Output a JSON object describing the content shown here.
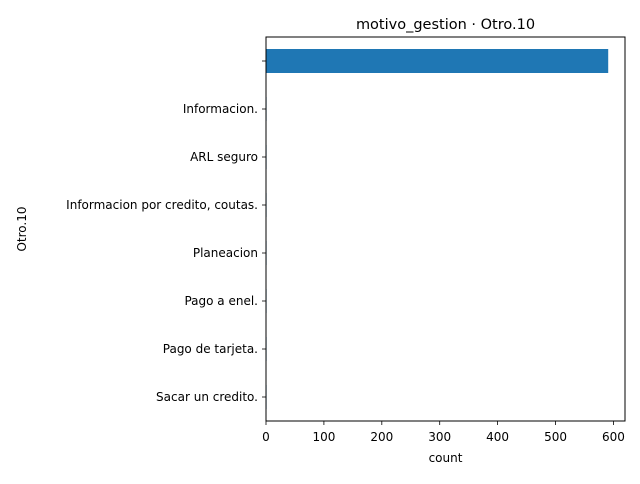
{
  "chart_data": {
    "type": "bar",
    "orientation": "horizontal",
    "title": "motivo_gestion · Otro.10",
    "xlabel": "count",
    "ylabel": "Otro.10",
    "categories": [
      "",
      "Informacion.",
      "ARL seguro",
      "Informacion por credito, coutas.",
      "Planeacion",
      "Pago a enel.",
      "Pago de tarjeta.",
      "Sacar un credito."
    ],
    "values": [
      591,
      1,
      1,
      1,
      1,
      1,
      1,
      1
    ],
    "xlim": [
      0,
      620
    ],
    "xticks": [
      0,
      100,
      200,
      300,
      400,
      500,
      600
    ],
    "grid": false,
    "bar_color": "#1f77b4"
  }
}
